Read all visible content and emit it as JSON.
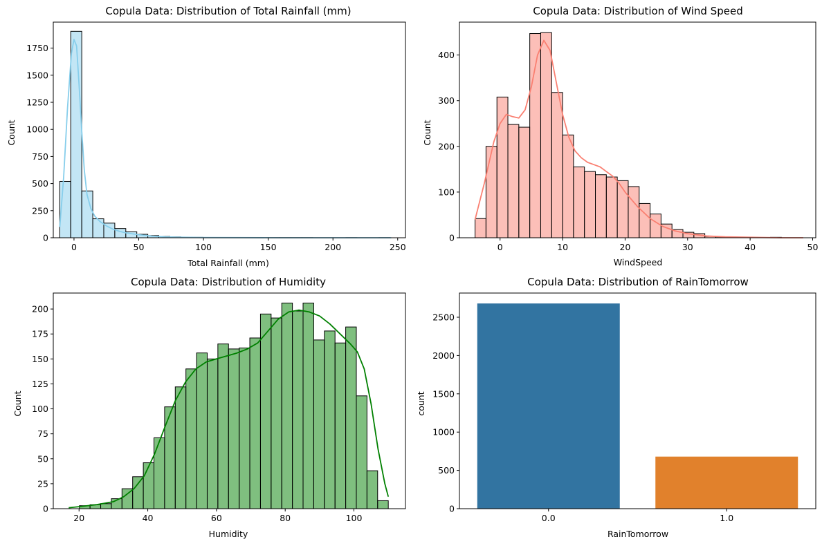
{
  "chart_data": [
    {
      "type": "histogram",
      "title": "Copula Data: Distribution of Total Rainfall (mm)",
      "xlabel": "Total Rainfall (mm)",
      "ylabel": "Count",
      "xlim": [
        -16,
        256
      ],
      "ylim": [
        0,
        1990
      ],
      "xticks": [
        0,
        50,
        100,
        150,
        200,
        250
      ],
      "yticks": [
        0,
        250,
        500,
        750,
        1000,
        1250,
        1500,
        1750
      ],
      "bin_start": -11,
      "bin_width": 8.5,
      "counts": [
        520,
        1905,
        432,
        175,
        135,
        85,
        55,
        32,
        20,
        12,
        8,
        5,
        4,
        3,
        2,
        2,
        1,
        1,
        1,
        1,
        1,
        1,
        1,
        0,
        0,
        0,
        1,
        0,
        0,
        1
      ],
      "fill": "#87ceeb",
      "kde_color": "#87ceeb",
      "kde": [
        [
          -11,
          100
        ],
        [
          -8,
          560
        ],
        [
          -5,
          1200
        ],
        [
          -2,
          1700
        ],
        [
          0,
          1830
        ],
        [
          2,
          1770
        ],
        [
          4,
          1400
        ],
        [
          6,
          980
        ],
        [
          8,
          620
        ],
        [
          10,
          400
        ],
        [
          13,
          270
        ],
        [
          16,
          200
        ],
        [
          20,
          150
        ],
        [
          25,
          110
        ],
        [
          30,
          80
        ],
        [
          35,
          60
        ],
        [
          40,
          45
        ],
        [
          50,
          28
        ],
        [
          60,
          15
        ],
        [
          70,
          8
        ],
        [
          80,
          5
        ],
        [
          100,
          2
        ],
        [
          130,
          1
        ],
        [
          160,
          0
        ],
        [
          200,
          0
        ],
        [
          245,
          0
        ]
      ],
      "grid": false
    },
    {
      "type": "histogram",
      "title": "Copula Data: Distribution of Wind Speed",
      "xlabel": "WindSpeed",
      "ylabel": "Count",
      "xlim": [
        -6.5,
        50.5
      ],
      "ylim": [
        0,
        472
      ],
      "xticks": [
        0,
        10,
        20,
        30,
        40,
        50
      ],
      "yticks": [
        0,
        100,
        200,
        300,
        400
      ],
      "bin_start": -4,
      "bin_width": 1.75,
      "counts": [
        42,
        200,
        308,
        248,
        242,
        447,
        449,
        318,
        225,
        155,
        145,
        138,
        133,
        125,
        112,
        75,
        52,
        30,
        18,
        12,
        9,
        3,
        2,
        1,
        1,
        0,
        0,
        1
      ],
      "fill": "#fa8072",
      "kde_color": "#fa8072",
      "kde": [
        [
          -4,
          40
        ],
        [
          -2.5,
          120
        ],
        [
          -1,
          210
        ],
        [
          0,
          250
        ],
        [
          1,
          270
        ],
        [
          2,
          265
        ],
        [
          3,
          262
        ],
        [
          4,
          280
        ],
        [
          5,
          330
        ],
        [
          6,
          400
        ],
        [
          7,
          432
        ],
        [
          8,
          410
        ],
        [
          9,
          340
        ],
        [
          10,
          270
        ],
        [
          11,
          220
        ],
        [
          12,
          190
        ],
        [
          13,
          175
        ],
        [
          14,
          165
        ],
        [
          15,
          160
        ],
        [
          16,
          155
        ],
        [
          17,
          145
        ],
        [
          18,
          135
        ],
        [
          19,
          120
        ],
        [
          20,
          100
        ],
        [
          22,
          68
        ],
        [
          24,
          42
        ],
        [
          26,
          25
        ],
        [
          28,
          15
        ],
        [
          30,
          9
        ],
        [
          33,
          4
        ],
        [
          36,
          2
        ],
        [
          40,
          1
        ],
        [
          45,
          0
        ],
        [
          48.5,
          0
        ]
      ],
      "grid": false
    },
    {
      "type": "histogram",
      "title": "Copula Data: Distribution of Humidity",
      "xlabel": "Humidity",
      "ylabel": "Count",
      "xlim": [
        12.5,
        115
      ],
      "ylim": [
        0,
        216
      ],
      "xticks": [
        20,
        40,
        60,
        80,
        100
      ],
      "yticks": [
        0,
        25,
        50,
        75,
        100,
        125,
        150,
        175,
        200
      ],
      "bin_start": 17,
      "bin_width": 3.1,
      "counts": [
        0,
        3,
        4,
        5,
        10,
        20,
        32,
        46,
        71,
        102,
        122,
        140,
        156,
        150,
        165,
        160,
        161,
        171,
        195,
        191,
        206,
        198,
        206,
        169,
        178,
        166,
        182,
        113,
        38,
        8
      ],
      "fill": "#008000",
      "kde_color": "#008000",
      "kde": [
        [
          17,
          1
        ],
        [
          20,
          2
        ],
        [
          25,
          4
        ],
        [
          30,
          7
        ],
        [
          33,
          12
        ],
        [
          36,
          20
        ],
        [
          39,
          33
        ],
        [
          42,
          55
        ],
        [
          45,
          82
        ],
        [
          48,
          108
        ],
        [
          51,
          127
        ],
        [
          54,
          140
        ],
        [
          57,
          147
        ],
        [
          60,
          150
        ],
        [
          63,
          153
        ],
        [
          66,
          156
        ],
        [
          69,
          160
        ],
        [
          72,
          166
        ],
        [
          75,
          178
        ],
        [
          78,
          190
        ],
        [
          81,
          197
        ],
        [
          84,
          199
        ],
        [
          87,
          197
        ],
        [
          90,
          193
        ],
        [
          93,
          185
        ],
        [
          96,
          175
        ],
        [
          99,
          165
        ],
        [
          101,
          157
        ],
        [
          103,
          140
        ],
        [
          105,
          105
        ],
        [
          107,
          60
        ],
        [
          109,
          25
        ],
        [
          110,
          12
        ]
      ],
      "grid": false
    },
    {
      "type": "bar",
      "title": "Copula Data: Distribution of RainTomorrow",
      "xlabel": "RainTomorrow",
      "ylabel": "count",
      "categories": [
        "0.0",
        "1.0"
      ],
      "values": [
        2680,
        680
      ],
      "colors": [
        "#3274a1",
        "#e1812c"
      ],
      "ylim": [
        0,
        2816
      ],
      "yticks": [
        0,
        500,
        1000,
        1500,
        2000,
        2500
      ],
      "grid": false
    }
  ]
}
